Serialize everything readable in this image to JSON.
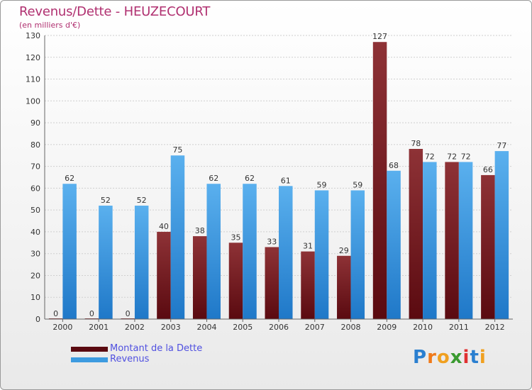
{
  "title": "Revenus/Dette - HEUZECOURT",
  "subtitle": "(en milliers d'€)",
  "colors": {
    "title": "#b03070",
    "dette": "#6b1218",
    "revenus": "#3d9be0",
    "legend_text": "#5050e0"
  },
  "chart_data": {
    "type": "bar",
    "title": "Revenus/Dette - HEUZECOURT",
    "ylabel": "(en milliers d'€)",
    "xlabel": "",
    "categories": [
      "2000",
      "2001",
      "2002",
      "2003",
      "2004",
      "2005",
      "2006",
      "2007",
      "2008",
      "2009",
      "2010",
      "2011",
      "2012"
    ],
    "series": [
      {
        "name": "Montant de la Dette",
        "values": [
          0,
          0,
          0,
          40,
          38,
          35,
          33,
          31,
          29,
          127,
          78,
          72,
          66
        ]
      },
      {
        "name": "Revenus",
        "values": [
          62,
          52,
          52,
          75,
          62,
          62,
          61,
          59,
          59,
          68,
          72,
          72,
          77
        ]
      }
    ],
    "ylim": [
      0,
      130
    ],
    "yticks": [
      0,
      10,
      20,
      30,
      40,
      50,
      60,
      70,
      80,
      90,
      100,
      110,
      120,
      130
    ],
    "grid": true,
    "legend_position": "bottom-left"
  },
  "legend": {
    "items": [
      {
        "label": "Montant de la Dette",
        "color": "#6b1218"
      },
      {
        "label": "Revenus",
        "color": "#3d9be0"
      }
    ]
  },
  "logo": {
    "text": "Proxiti",
    "letter_colors": [
      "#2a7fd0",
      "#f07a1a",
      "#f0a020",
      "#3a9a30",
      "#e03030",
      "#2a7fd0",
      "#f0a020"
    ]
  }
}
